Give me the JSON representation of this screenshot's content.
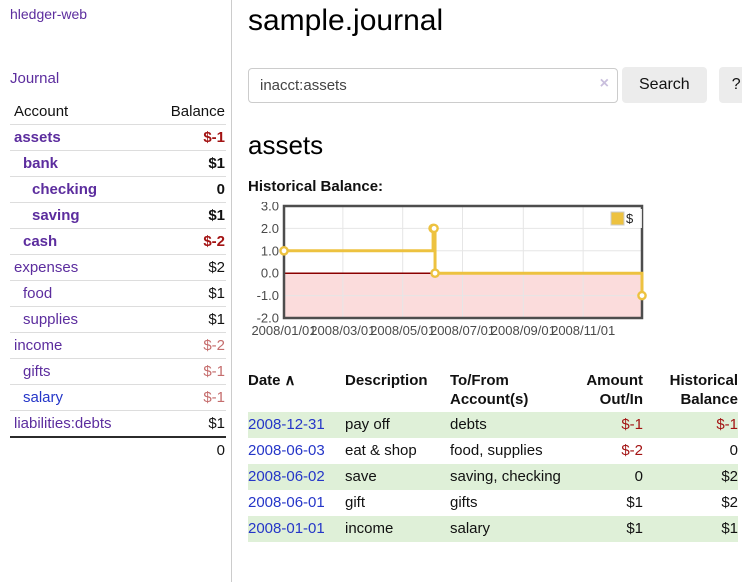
{
  "sidebar": {
    "app_title": "hledger-web",
    "journal_label": "Journal",
    "accounts": {
      "header_account": "Account",
      "header_balance": "Balance",
      "rows": [
        {
          "name": "assets",
          "balance": "$-1",
          "indent": 1,
          "bold": true,
          "link_color": "purple",
          "balance_style": "neg-strong"
        },
        {
          "name": "bank",
          "balance": "$1",
          "indent": 2,
          "bold": true,
          "link_color": "purple",
          "balance_style": "normal"
        },
        {
          "name": "checking",
          "balance": "0",
          "indent": 3,
          "bold": true,
          "link_color": "purple",
          "balance_style": "normal"
        },
        {
          "name": "saving",
          "balance": "$1",
          "indent": 3,
          "bold": true,
          "link_color": "purple",
          "balance_style": "normal"
        },
        {
          "name": "cash",
          "balance": "$-2",
          "indent": 2,
          "bold": true,
          "link_color": "purple",
          "balance_style": "neg-strong"
        },
        {
          "name": "expenses",
          "balance": "$2",
          "indent": 1,
          "bold": false,
          "link_color": "purple",
          "balance_style": "normal"
        },
        {
          "name": "food",
          "balance": "$1",
          "indent": 2,
          "bold": false,
          "link_color": "purple",
          "balance_style": "normal"
        },
        {
          "name": "supplies",
          "balance": "$1",
          "indent": 2,
          "bold": false,
          "link_color": "purple",
          "balance_style": "normal"
        },
        {
          "name": "income",
          "balance": "$-2",
          "indent": 1,
          "bold": false,
          "link_color": "purple",
          "balance_style": "neg-soft"
        },
        {
          "name": "gifts",
          "balance": "$-1",
          "indent": 2,
          "bold": false,
          "link_color": "purple",
          "balance_style": "neg-soft"
        },
        {
          "name": "salary",
          "balance": "$-1",
          "indent": 2,
          "bold": false,
          "link_color": "blue",
          "balance_style": "neg-soft"
        },
        {
          "name": "liabilities:debts",
          "balance": "$1",
          "indent": 1,
          "bold": false,
          "link_color": "purple",
          "balance_style": "normal"
        }
      ],
      "total": "0"
    }
  },
  "header": {
    "title": "sample.journal"
  },
  "search": {
    "value": "inacct:assets",
    "clear_icon": "×",
    "button_label": "Search",
    "help_label": "?"
  },
  "account_page": {
    "heading": "assets",
    "chart_label": "Historical Balance:"
  },
  "chart_data": {
    "type": "line",
    "step": true,
    "title": "Historical Balance",
    "series": [
      {
        "name": "$",
        "color": "#edc240",
        "points": [
          [
            "2008-01-01",
            1
          ],
          [
            "2008-06-01",
            2
          ],
          [
            "2008-06-02",
            2
          ],
          [
            "2008-06-03",
            0
          ],
          [
            "2008-12-31",
            -1
          ]
        ]
      }
    ],
    "xlim": [
      "2008-01-01",
      "2008-12-31"
    ],
    "ylim": [
      -2,
      3
    ],
    "x_ticks": [
      "2008/01/01",
      "2008/03/01",
      "2008/05/01",
      "2008/07/01",
      "2008/09/01",
      "2008/11/01"
    ],
    "y_ticks": [
      "3.0",
      "2.0",
      "1.0",
      "0.0",
      "-1.0",
      "-2.0"
    ],
    "grid": true,
    "legend_position": "top-right",
    "legend_label": "$",
    "colors": {
      "line": "#edc240",
      "marker_fill": "#ffffff",
      "negative_region": "#fbdcdc",
      "zero_line": "#8b0000",
      "gridline": "#e6e6e6",
      "border": "#4d4d4d",
      "tick_text": "#4a4a4a"
    }
  },
  "register": {
    "headers": {
      "date": "Date",
      "sort_caret": "∧",
      "description": "Description",
      "accounts": "To/From Account(s)",
      "amount": "Amount Out/In",
      "balance": "Historical Balance"
    },
    "rows": [
      {
        "date": "2008-12-31",
        "description": "pay off",
        "accounts": "debts",
        "amount": "$-1",
        "amount_negative": true,
        "balance": "$-1",
        "balance_negative": true
      },
      {
        "date": "2008-06-03",
        "description": "eat & shop",
        "accounts": "food, supplies",
        "amount": "$-2",
        "amount_negative": true,
        "balance": "0",
        "balance_negative": false
      },
      {
        "date": "2008-06-02",
        "description": "save",
        "accounts": "saving, checking",
        "amount": "0",
        "amount_negative": false,
        "balance": "$2",
        "balance_negative": false
      },
      {
        "date": "2008-06-01",
        "description": "gift",
        "accounts": "gifts",
        "amount": "$1",
        "amount_negative": false,
        "balance": "$2",
        "balance_negative": false
      },
      {
        "date": "2008-01-01",
        "description": "income",
        "accounts": "salary",
        "amount": "$1",
        "amount_negative": false,
        "balance": "$1",
        "balance_negative": false
      }
    ]
  }
}
